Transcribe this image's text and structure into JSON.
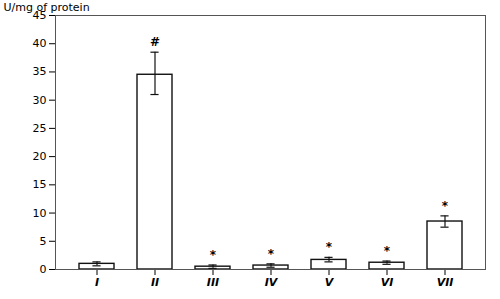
{
  "chart_data": {
    "type": "bar",
    "categories": [
      "I",
      "II",
      "III",
      "IV",
      "V",
      "VI",
      "VII"
    ],
    "values": [
      1.0,
      34.5,
      0.5,
      0.7,
      1.7,
      1.2,
      8.5
    ],
    "error_upper": [
      0.35,
      4.0,
      0.3,
      0.3,
      0.45,
      0.3,
      1.0
    ],
    "error_lower": [
      0.35,
      3.5,
      0.3,
      0.3,
      0.35,
      0.28,
      1.0
    ],
    "annotations": [
      null,
      "#",
      "*",
      "*",
      "*",
      "*",
      "*"
    ],
    "ylabel": "U/mg of protein",
    "ylim": [
      0,
      45
    ],
    "yticks": [
      0,
      5,
      10,
      15,
      20,
      25,
      30,
      35,
      40,
      45
    ],
    "color": "#ffffff",
    "grid": false
  }
}
